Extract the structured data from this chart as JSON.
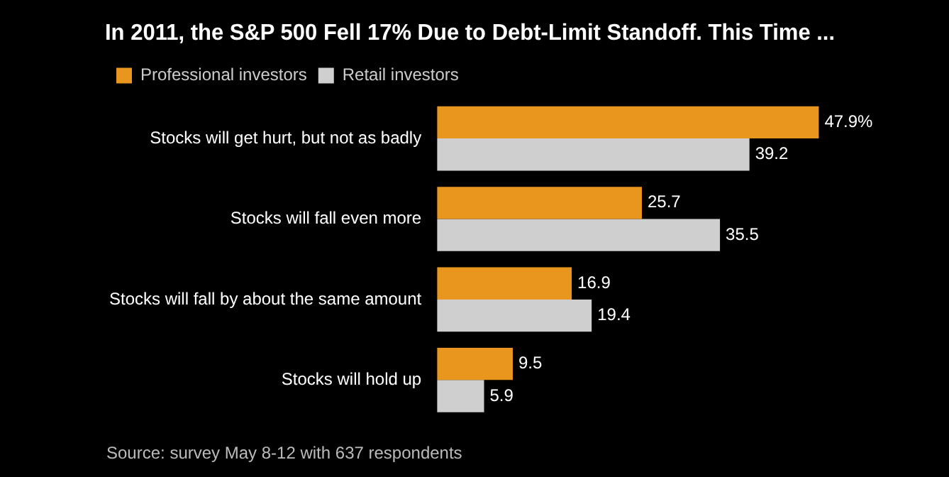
{
  "chart_data": {
    "type": "bar",
    "orientation": "horizontal",
    "title": "In 2011, the S&P 500 Fell 17% Due to Debt-Limit Standoff. This Time ...",
    "categories": [
      "Stocks will get hurt, but not as badly",
      "Stocks will fall even more",
      "Stocks will fall by about the same amount",
      "Stocks will hold up"
    ],
    "series": [
      {
        "name": "Professional investors",
        "color": "#e8961e",
        "values": [
          47.9,
          25.7,
          16.9,
          9.5
        ],
        "value_labels": [
          "47.9%",
          "25.7",
          "16.9",
          "9.5"
        ]
      },
      {
        "name": "Retail investors",
        "color": "#cfcfcf",
        "values": [
          39.2,
          35.5,
          19.4,
          5.9
        ],
        "value_labels": [
          "39.2",
          "35.5",
          "19.4",
          "5.9"
        ]
      }
    ],
    "legend": "top left",
    "annotations": [
      "Source: survey May 8-12 with 637 respondents"
    ]
  }
}
